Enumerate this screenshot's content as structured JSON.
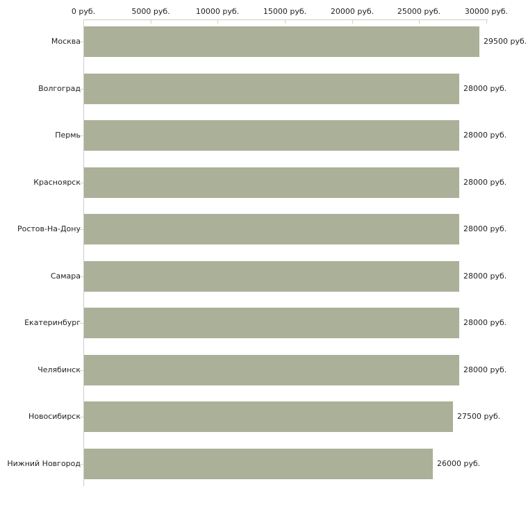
{
  "chart_data": {
    "type": "bar",
    "orientation": "horizontal",
    "title": "",
    "xlabel": "",
    "ylabel": "",
    "unit": "руб.",
    "xlim": [
      0,
      30000
    ],
    "grid": false,
    "legend": null,
    "x_ticks": [
      {
        "value": 0,
        "label": "0 руб."
      },
      {
        "value": 5000,
        "label": "5000 руб."
      },
      {
        "value": 10000,
        "label": "10000 руб."
      },
      {
        "value": 15000,
        "label": "15000 руб."
      },
      {
        "value": 20000,
        "label": "20000 руб."
      },
      {
        "value": 25000,
        "label": "25000 руб."
      },
      {
        "value": 30000,
        "label": "30000 руб."
      }
    ],
    "categories": [
      "Москва",
      "Волгоград",
      "Пермь",
      "Красноярск",
      "Ростов-На-Дону",
      "Самара",
      "Екатеринбург",
      "Челябинск",
      "Новосибирск",
      "Нижний Новгород"
    ],
    "values": [
      29500,
      28000,
      28000,
      28000,
      28000,
      28000,
      28000,
      28000,
      27500,
      26000
    ],
    "bars": [
      {
        "category": "Москва",
        "value": 29500,
        "value_label": "29500 руб."
      },
      {
        "category": "Волгоград",
        "value": 28000,
        "value_label": "28000 руб."
      },
      {
        "category": "Пермь",
        "value": 28000,
        "value_label": "28000 руб."
      },
      {
        "category": "Красноярск",
        "value": 28000,
        "value_label": "28000 руб."
      },
      {
        "category": "Ростов-На-Дону",
        "value": 28000,
        "value_label": "28000 руб."
      },
      {
        "category": "Самара",
        "value": 28000,
        "value_label": "28000 руб."
      },
      {
        "category": "Екатеринбург",
        "value": 28000,
        "value_label": "28000 руб."
      },
      {
        "category": "Челябинск",
        "value": 28000,
        "value_label": "28000 руб."
      },
      {
        "category": "Новосибирск",
        "value": 27500,
        "value_label": "27500 руб."
      },
      {
        "category": "Нижний Новгород",
        "value": 26000,
        "value_label": "26000 руб."
      }
    ],
    "colors": {
      "bar": "#abb098",
      "axis_line": "#cccccc",
      "tick": "#d4d4be",
      "text": "#1f1f1f",
      "background": "#ffffff"
    }
  }
}
